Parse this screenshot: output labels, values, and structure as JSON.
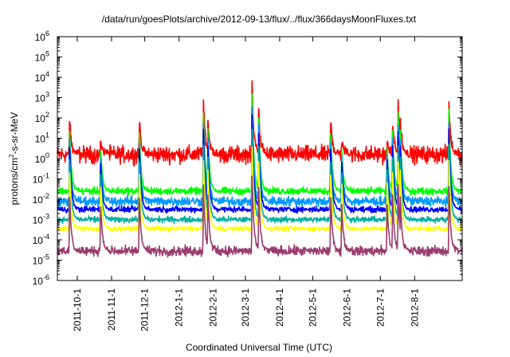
{
  "chart_data": {
    "type": "line",
    "title": "/data/run/goesPlots/archive/2012-09-13/flux/../flux/366daysMoonFluxes.txt",
    "xlabel": "Coordinated Universal Time (UTC)",
    "ylabel": {
      "base": "protons/cm",
      "sup": "2",
      "rest": "-s-sr-MeV"
    },
    "yscale": "log",
    "ylim_exp": [
      -6,
      6
    ],
    "y_tick_labels": [
      {
        "base": "10",
        "exp": "-6"
      },
      {
        "base": "10",
        "exp": "-5"
      },
      {
        "base": "10",
        "exp": "-4"
      },
      {
        "base": "10",
        "exp": "-3"
      },
      {
        "base": "10",
        "exp": "-2"
      },
      {
        "base": "10",
        "exp": "-1"
      },
      {
        "base": "10",
        "exp": "0"
      },
      {
        "base": "10",
        "exp": "1"
      },
      {
        "base": "10",
        "exp": "2"
      },
      {
        "base": "10",
        "exp": "3"
      },
      {
        "base": "10",
        "exp": "4"
      },
      {
        "base": "10",
        "exp": "5"
      },
      {
        "base": "10",
        "exp": "6"
      }
    ],
    "xlim": [
      "2011-09-13",
      "2012-09-13"
    ],
    "x_ticks": [
      {
        "label": "2011-10-1",
        "date": "2011-10-01"
      },
      {
        "label": "2011-11-1",
        "date": "2011-11-01"
      },
      {
        "label": "2011-12-1",
        "date": "2011-12-01"
      },
      {
        "label": "2012-1-1",
        "date": "2012-01-01"
      },
      {
        "label": "2012-2-1",
        "date": "2012-02-01"
      },
      {
        "label": "2012-3-1",
        "date": "2012-03-01"
      },
      {
        "label": "2012-4-1",
        "date": "2012-04-01"
      },
      {
        "label": "2012-5-1",
        "date": "2012-05-01"
      },
      {
        "label": "2012-6-1",
        "date": "2012-06-01"
      },
      {
        "label": "2012-7-1",
        "date": "2012-07-01"
      },
      {
        "label": "2012-8-1",
        "date": "2012-08-01"
      }
    ],
    "grid": false,
    "legend": "none",
    "events": [
      {
        "date": "2011-09-24",
        "peak": 2.0
      },
      {
        "date": "2011-10-22",
        "peak": 1.0
      },
      {
        "date": "2011-11-26",
        "peak": 2.0
      },
      {
        "date": "2012-01-23",
        "peak": 3.0
      },
      {
        "date": "2012-01-27",
        "peak": 2.0
      },
      {
        "date": "2012-03-07",
        "peak": 3.8
      },
      {
        "date": "2012-03-13",
        "peak": 2.5
      },
      {
        "date": "2012-05-17",
        "peak": 2.0
      },
      {
        "date": "2012-05-27",
        "peak": 1.0
      },
      {
        "date": "2012-07-07",
        "peak": 1.0
      },
      {
        "date": "2012-07-12",
        "peak": 2.0
      },
      {
        "date": "2012-07-17",
        "peak": 3.0
      },
      {
        "date": "2012-07-19",
        "peak": 2.0
      },
      {
        "date": "2012-09-01",
        "peak": 2.8
      }
    ],
    "series": [
      {
        "color": "#ff0000",
        "base_log": 0.2,
        "noise": 0.35,
        "peak_scale": 1.0
      },
      {
        "color": "#00ff00",
        "base_log": -1.6,
        "noise": 0.15,
        "peak_scale": 0.9
      },
      {
        "color": "#0099ff",
        "base_log": -2.1,
        "noise": 0.2,
        "peak_scale": 0.8
      },
      {
        "color": "#0000ff",
        "base_log": -2.5,
        "noise": 0.12,
        "peak_scale": 0.75
      },
      {
        "color": "#00b0a0",
        "base_log": -3.0,
        "noise": 0.12,
        "peak_scale": 0.65
      },
      {
        "color": "#ffff00",
        "base_log": -3.45,
        "noise": 0.1,
        "peak_scale": 0.55
      },
      {
        "color": "#9a3c6e",
        "base_log": -4.55,
        "noise": 0.2,
        "peak_scale": 0.45
      }
    ]
  }
}
